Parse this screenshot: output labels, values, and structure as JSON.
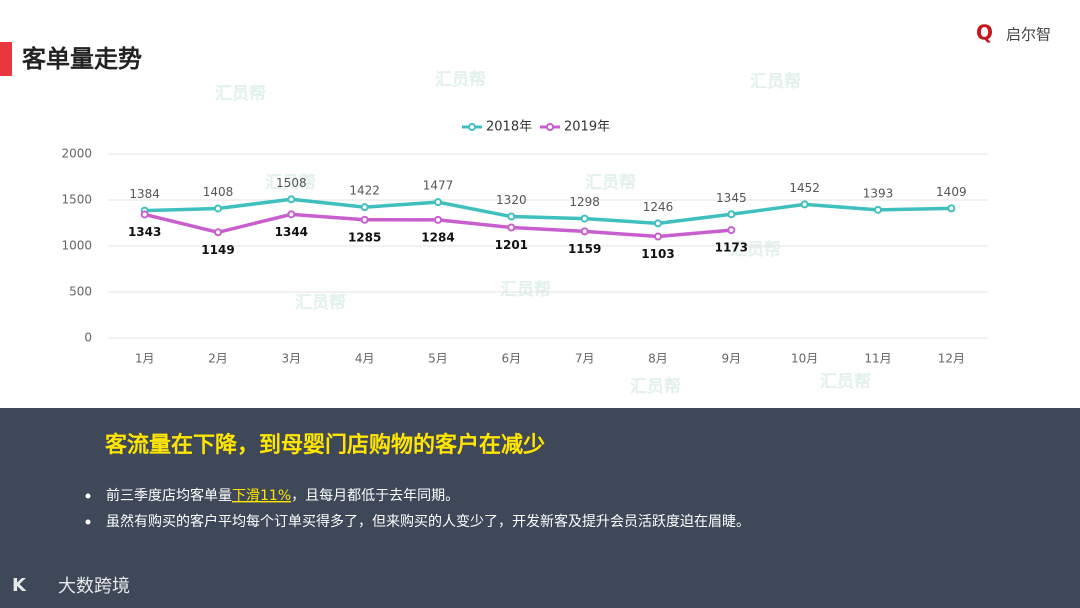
{
  "logo": "启尔智",
  "watermark": "汇员帮",
  "footer_logo": "大数跨境",
  "chart_data": {
    "type": "line",
    "title": "客单量走势",
    "categories": [
      "1月",
      "2月",
      "3月",
      "4月",
      "5月",
      "6月",
      "7月",
      "8月",
      "9月",
      "10月",
      "11月",
      "12月"
    ],
    "series": [
      {
        "name": "2018年",
        "color": "#3fbfbd",
        "values": [
          1384,
          1408,
          1508,
          1422,
          1477,
          1320,
          1298,
          1246,
          1345,
          1452,
          1393,
          1409
        ]
      },
      {
        "name": "2019年",
        "color": "#c95fcf",
        "values": [
          1343,
          1149,
          1344,
          1285,
          1284,
          1201,
          1159,
          1103,
          1173,
          null,
          null,
          null
        ]
      }
    ],
    "ylim": [
      0,
      2000
    ],
    "yticks": [
      0,
      500,
      1000,
      1500,
      2000
    ],
    "grid": true,
    "legend": "top"
  },
  "summary": {
    "headline": "客流量在下降，到母婴门店购物的客户在减少",
    "bullets": [
      [
        "前三季度店均客单量",
        "下滑11%",
        "，且每月都低于去年同期。"
      ],
      [
        "虽然有购买的客户平均每个订单买得多了，但来购买的人变少了，开发新客及提升会员活跃度迫在眉睫。"
      ]
    ]
  }
}
